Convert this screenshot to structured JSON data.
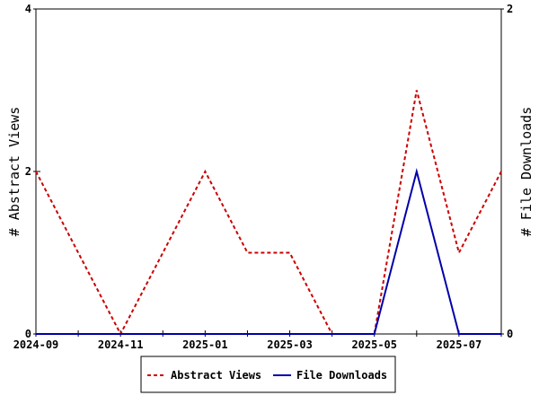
{
  "chart_data": {
    "type": "line",
    "x": [
      "2024-09",
      "2024-10",
      "2024-11",
      "2024-12",
      "2025-01",
      "2025-02",
      "2025-03",
      "2025-04",
      "2025-05",
      "2025-06",
      "2025-07",
      "2025-08"
    ],
    "x_tick_labels": [
      "2024-09",
      "2024-11",
      "2025-01",
      "2025-03",
      "2025-05",
      "2025-07"
    ],
    "left_axis": {
      "label": "# Abstract Views",
      "ylim": [
        0,
        4
      ],
      "ticks": [
        "0",
        "2",
        "4"
      ]
    },
    "right_axis": {
      "label": "# File Downloads",
      "ylim": [
        0,
        2
      ],
      "ticks": [
        "0",
        "2"
      ]
    },
    "series": [
      {
        "name": "Abstract Views",
        "axis": "left",
        "color": "#cc0000",
        "style": "dashed",
        "values": [
          2,
          1,
          0,
          1,
          2,
          1,
          1,
          0,
          0,
          3,
          1,
          2
        ]
      },
      {
        "name": "File Downloads",
        "axis": "right",
        "color": "#0000aa",
        "style": "solid",
        "values": [
          0,
          0,
          0,
          0,
          0,
          0,
          0,
          0,
          0,
          1,
          0,
          0
        ]
      }
    ],
    "grid": false,
    "legend_position": "bottom"
  }
}
